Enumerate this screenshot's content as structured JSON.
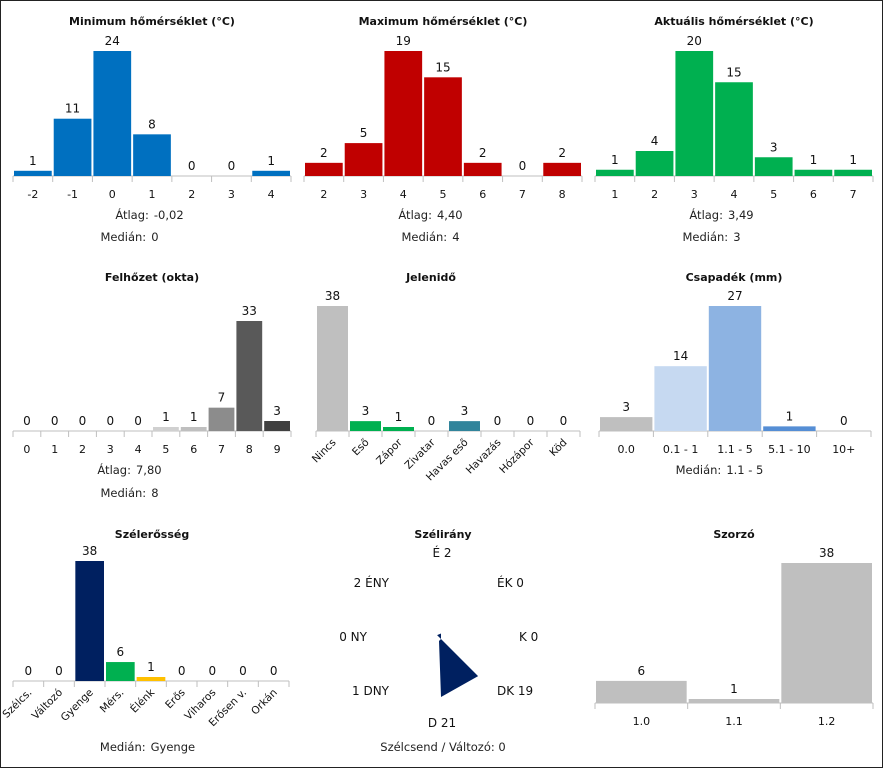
{
  "chart_data": [
    {
      "id": "min",
      "type": "bar",
      "title": "Minimum hőmérséklet (°C)",
      "categories": [
        "-2",
        "-1",
        "0",
        "1",
        "2",
        "3",
        "4"
      ],
      "values": [
        1,
        11,
        24,
        8,
        0,
        0,
        1
      ],
      "colors": [
        "#0070c0"
      ],
      "stats": [
        {
          "label": "Átlag:",
          "value": "-0,02"
        },
        {
          "label": "Medián:",
          "value": "0"
        }
      ]
    },
    {
      "id": "max",
      "type": "bar",
      "title": "Maximum hőmérséklet (°C)",
      "categories": [
        "2",
        "3",
        "4",
        "5",
        "6",
        "7",
        "8"
      ],
      "values": [
        2,
        5,
        19,
        15,
        2,
        0,
        2
      ],
      "colors": [
        "#c00000"
      ],
      "stats": [
        {
          "label": "Átlag:",
          "value": "4,40"
        },
        {
          "label": "Medián:",
          "value": "4"
        }
      ]
    },
    {
      "id": "act",
      "type": "bar",
      "title": "Aktuális hőmérséklet (°C)",
      "categories": [
        "1",
        "2",
        "3",
        "4",
        "5",
        "6",
        "7"
      ],
      "values": [
        1,
        4,
        20,
        15,
        3,
        1,
        1
      ],
      "colors": [
        "#00b050"
      ],
      "stats": [
        {
          "label": "Átlag:",
          "value": "3,49"
        },
        {
          "label": "Medián:",
          "value": "3"
        }
      ]
    },
    {
      "id": "cloud",
      "type": "bar",
      "title": "Felhőzet (okta)",
      "categories": [
        "0",
        "1",
        "2",
        "3",
        "4",
        "5",
        "6",
        "7",
        "8",
        "9"
      ],
      "values": [
        0,
        0,
        0,
        0,
        0,
        1,
        1,
        7,
        33,
        3
      ],
      "colors": [
        "#d9d9d9",
        "#d9d9d9",
        "#d9d9d9",
        "#d9d9d9",
        "#d9d9d9",
        "#d0d0d0",
        "#bfbfbf",
        "#8c8c8c",
        "#595959",
        "#404040"
      ],
      "stats": [
        {
          "label": "Átlag:",
          "value": "7,80"
        },
        {
          "label": "Medián:",
          "value": "8"
        }
      ]
    },
    {
      "id": "wx",
      "type": "bar",
      "title": "Jelenidő",
      "categories": [
        "Nincs",
        "Eső",
        "Zápor",
        "Zivatar",
        "Havas eső",
        "Havazás",
        "Hózápor",
        "Köd"
      ],
      "values": [
        38,
        3,
        1,
        0,
        3,
        0,
        0,
        0
      ],
      "colors": [
        "#bfbfbf",
        "#00b050",
        "#00b050",
        "#bfbfbf",
        "#31849b",
        "#bfbfbf",
        "#bfbfbf",
        "#bfbfbf"
      ],
      "stats": []
    },
    {
      "id": "precip",
      "type": "bar",
      "title": "Csapadék (mm)",
      "categories": [
        "0.0",
        "0.1 - 1",
        "1.1 - 5",
        "5.1 - 10",
        "10+"
      ],
      "values": [
        3,
        14,
        27,
        1,
        0
      ],
      "colors": [
        "#bfbfbf",
        "#c6d9f1",
        "#8db3e2",
        "#558ed5",
        "#1f497d"
      ],
      "stats": [
        {
          "label": "Medián:",
          "value": "1.1 - 5"
        }
      ]
    },
    {
      "id": "wind",
      "type": "bar",
      "title": "Szélerősség",
      "categories": [
        "Szélcs.",
        "Változó",
        "Gyenge",
        "Mérs.",
        "Élénk",
        "Erős",
        "Viharos",
        "Erősen v.",
        "Orkán"
      ],
      "values": [
        0,
        0,
        38,
        6,
        1,
        0,
        0,
        0,
        0
      ],
      "colors": [
        "#bfbfbf",
        "#bfbfbf",
        "#002060",
        "#00b050",
        "#ffc000",
        "#ff6600",
        "#c00000",
        "#7030a0",
        "#000000"
      ],
      "stats": [
        {
          "label": "Medián:",
          "value": "Gyenge"
        }
      ]
    },
    {
      "id": "dir",
      "type": "radar",
      "title": "Szélirány",
      "categories": [
        "É",
        "ÉK",
        "K",
        "DK",
        "D",
        "DNY",
        "NY",
        "ÉNY"
      ],
      "values": [
        2,
        0,
        0,
        19,
        21,
        1,
        0,
        2
      ],
      "colors": [
        "#002060"
      ],
      "note": "Szélcsend / Változó: 0"
    },
    {
      "id": "mult",
      "type": "bar",
      "title": "Szorzó",
      "categories": [
        "1.0",
        "1.1",
        "1.2"
      ],
      "values": [
        6,
        1,
        38
      ],
      "colors": [
        "#bfbfbf"
      ],
      "stats": []
    }
  ]
}
